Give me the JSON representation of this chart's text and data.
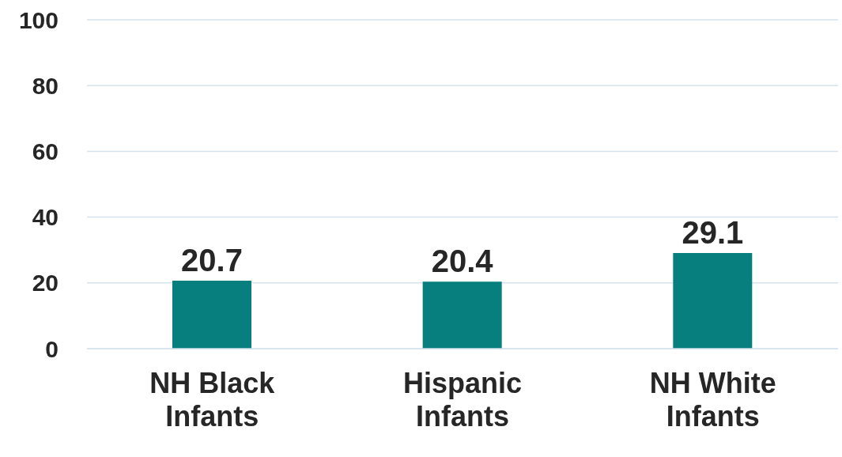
{
  "chart_data": {
    "type": "bar",
    "categories": [
      "NH Black Infants",
      "Hispanic Infants",
      "NH White Infants"
    ],
    "values": [
      20.7,
      20.4,
      29.1
    ],
    "color": "#077f7f",
    "ylim": [
      0,
      100
    ],
    "yticks": [
      0,
      20,
      40,
      60,
      80,
      100
    ],
    "grid": "y",
    "data_labels": true
  }
}
